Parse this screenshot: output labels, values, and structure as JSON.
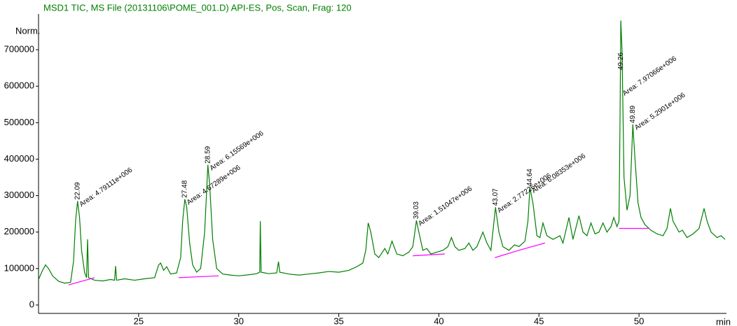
{
  "chart_data": {
    "type": "line",
    "title": "MSD1 TIC, MS File (20131106\\POME_001.D)    API-ES, Pos, Scan, Frag: 120",
    "y_label": "Norm.",
    "x_label": "min",
    "xlim": [
      20,
      54.3
    ],
    "ylim": [
      -23000,
      798000
    ],
    "xticks": [
      25,
      30,
      35,
      40,
      45,
      50
    ],
    "yticks": [
      0,
      100000,
      200000,
      300000,
      400000,
      500000,
      600000,
      700000
    ],
    "x": [
      20.0,
      20.2,
      20.35,
      20.5,
      20.7,
      21.0,
      21.3,
      21.6,
      21.75,
      21.85,
      21.95,
      22.05,
      22.15,
      22.3,
      22.4,
      22.45,
      22.5,
      22.8,
      23.2,
      23.6,
      23.8,
      23.85,
      23.9,
      24.3,
      24.8,
      25.3,
      25.8,
      26.0,
      26.1,
      26.25,
      26.4,
      26.6,
      26.9,
      27.1,
      27.2,
      27.31,
      27.4,
      27.55,
      27.7,
      27.9,
      28.1,
      28.3,
      28.46,
      28.55,
      28.7,
      28.9,
      29.2,
      29.6,
      30.0,
      30.5,
      30.9,
      31.05,
      31.08,
      31.12,
      31.5,
      31.9,
      31.99,
      32.05,
      32.5,
      33.0,
      33.5,
      34.0,
      34.5,
      35.0,
      35.5,
      35.9,
      36.2,
      36.35,
      36.47,
      36.6,
      36.8,
      37.0,
      37.3,
      37.45,
      37.66,
      37.9,
      38.2,
      38.5,
      38.7,
      38.88,
      39.0,
      39.2,
      39.4,
      39.6,
      39.9,
      40.2,
      40.45,
      40.63,
      40.8,
      41.0,
      41.3,
      41.5,
      41.7,
      41.9,
      42.2,
      42.4,
      42.6,
      42.83,
      43.0,
      43.2,
      43.5,
      43.78,
      44.0,
      44.3,
      44.45,
      44.55,
      44.7,
      44.9,
      45.05,
      45.2,
      45.4,
      45.7,
      46.05,
      46.2,
      46.5,
      46.7,
      47.0,
      47.2,
      47.4,
      47.6,
      47.8,
      48.0,
      48.2,
      48.4,
      48.6,
      48.74,
      48.9,
      49.0,
      49.05,
      49.09,
      49.15,
      49.25,
      49.4,
      49.55,
      49.69,
      49.8,
      49.95,
      50.1,
      50.3,
      50.6,
      50.9,
      51.2,
      51.4,
      51.57,
      51.7,
      52.0,
      52.17,
      52.4,
      52.7,
      53.0,
      53.25,
      53.4,
      53.6,
      53.9,
      54.1,
      54.3
    ],
    "series": [
      {
        "color": "#007f00",
        "values": [
          70000,
          95000,
          110000,
          100000,
          80000,
          65000,
          60000,
          62000,
          120000,
          230000,
          285000,
          240000,
          150000,
          90000,
          75000,
          180000,
          75000,
          68000,
          66000,
          70000,
          68000,
          107000,
          68000,
          72000,
          68000,
          72000,
          75000,
          110000,
          115000,
          95000,
          105000,
          85000,
          88000,
          130000,
          230000,
          290000,
          270000,
          170000,
          110000,
          90000,
          100000,
          200000,
          384000,
          330000,
          180000,
          100000,
          85000,
          82000,
          80000,
          83000,
          86000,
          90000,
          230000,
          90000,
          86000,
          88000,
          119000,
          90000,
          85000,
          82000,
          85000,
          88000,
          92000,
          90000,
          95000,
          105000,
          115000,
          150000,
          225000,
          200000,
          140000,
          130000,
          155000,
          140000,
          175000,
          140000,
          135000,
          145000,
          160000,
          232000,
          200000,
          150000,
          155000,
          140000,
          145000,
          150000,
          160000,
          185000,
          160000,
          150000,
          155000,
          170000,
          150000,
          160000,
          200000,
          170000,
          150000,
          268000,
          200000,
          160000,
          150000,
          165000,
          160000,
          175000,
          230000,
          322000,
          280000,
          190000,
          185000,
          225000,
          190000,
          180000,
          190000,
          170000,
          240000,
          180000,
          245000,
          200000,
          190000,
          225000,
          195000,
          200000,
          225000,
          200000,
          215000,
          240000,
          215000,
          230000,
          500000,
          780000,
          700000,
          350000,
          260000,
          300000,
          495000,
          400000,
          280000,
          240000,
          220000,
          205000,
          195000,
          190000,
          210000,
          265000,
          230000,
          200000,
          205000,
          185000,
          195000,
          210000,
          265000,
          230000,
          200000,
          185000,
          190000,
          180000
        ]
      }
    ],
    "baselines": [
      {
        "color": "#ff00ff",
        "x": [
          21.5,
          22.8
        ],
        "values": [
          55000,
          75000
        ]
      },
      {
        "color": "#ff00ff",
        "x": [
          27.0,
          29.0
        ],
        "values": [
          75000,
          80000
        ]
      },
      {
        "color": "#ff00ff",
        "x": [
          38.7,
          40.3
        ],
        "values": [
          135000,
          140000
        ]
      },
      {
        "color": "#ff00ff",
        "x": [
          42.8,
          44.0,
          45.3
        ],
        "values": [
          130000,
          150000,
          170000
        ]
      },
      {
        "color": "#ff00ff",
        "x": [
          49.0,
          50.5
        ],
        "values": [
          210000,
          210000
        ]
      }
    ],
    "peaks": [
      {
        "x": 21.95,
        "y": 285000,
        "rt": "22.09",
        "area": "Area: 4.79111e+006"
      },
      {
        "x": 27.31,
        "y": 290000,
        "rt": "27.48",
        "area": "Area: 4.67289e+006"
      },
      {
        "x": 28.46,
        "y": 384000,
        "rt": "28.59",
        "area": "Area: 6.15569e+006"
      },
      {
        "x": 38.88,
        "y": 232000,
        "rt": "39.03",
        "area": "Area: 1.51047e+006"
      },
      {
        "x": 42.83,
        "y": 268000,
        "rt": "43.07",
        "area": "Area: 2.77226e+006"
      },
      {
        "x": 44.55,
        "y": 322000,
        "rt": "44.64",
        "area": "Area: 6.08353e+006"
      },
      {
        "x": 49.09,
        "y": 780000,
        "rt": "49.26",
        "area": "Area: 7.97066e+006"
      },
      {
        "x": 49.69,
        "y": 495000,
        "rt": "49.89",
        "area": "Area: 5.2901e+006"
      }
    ]
  }
}
